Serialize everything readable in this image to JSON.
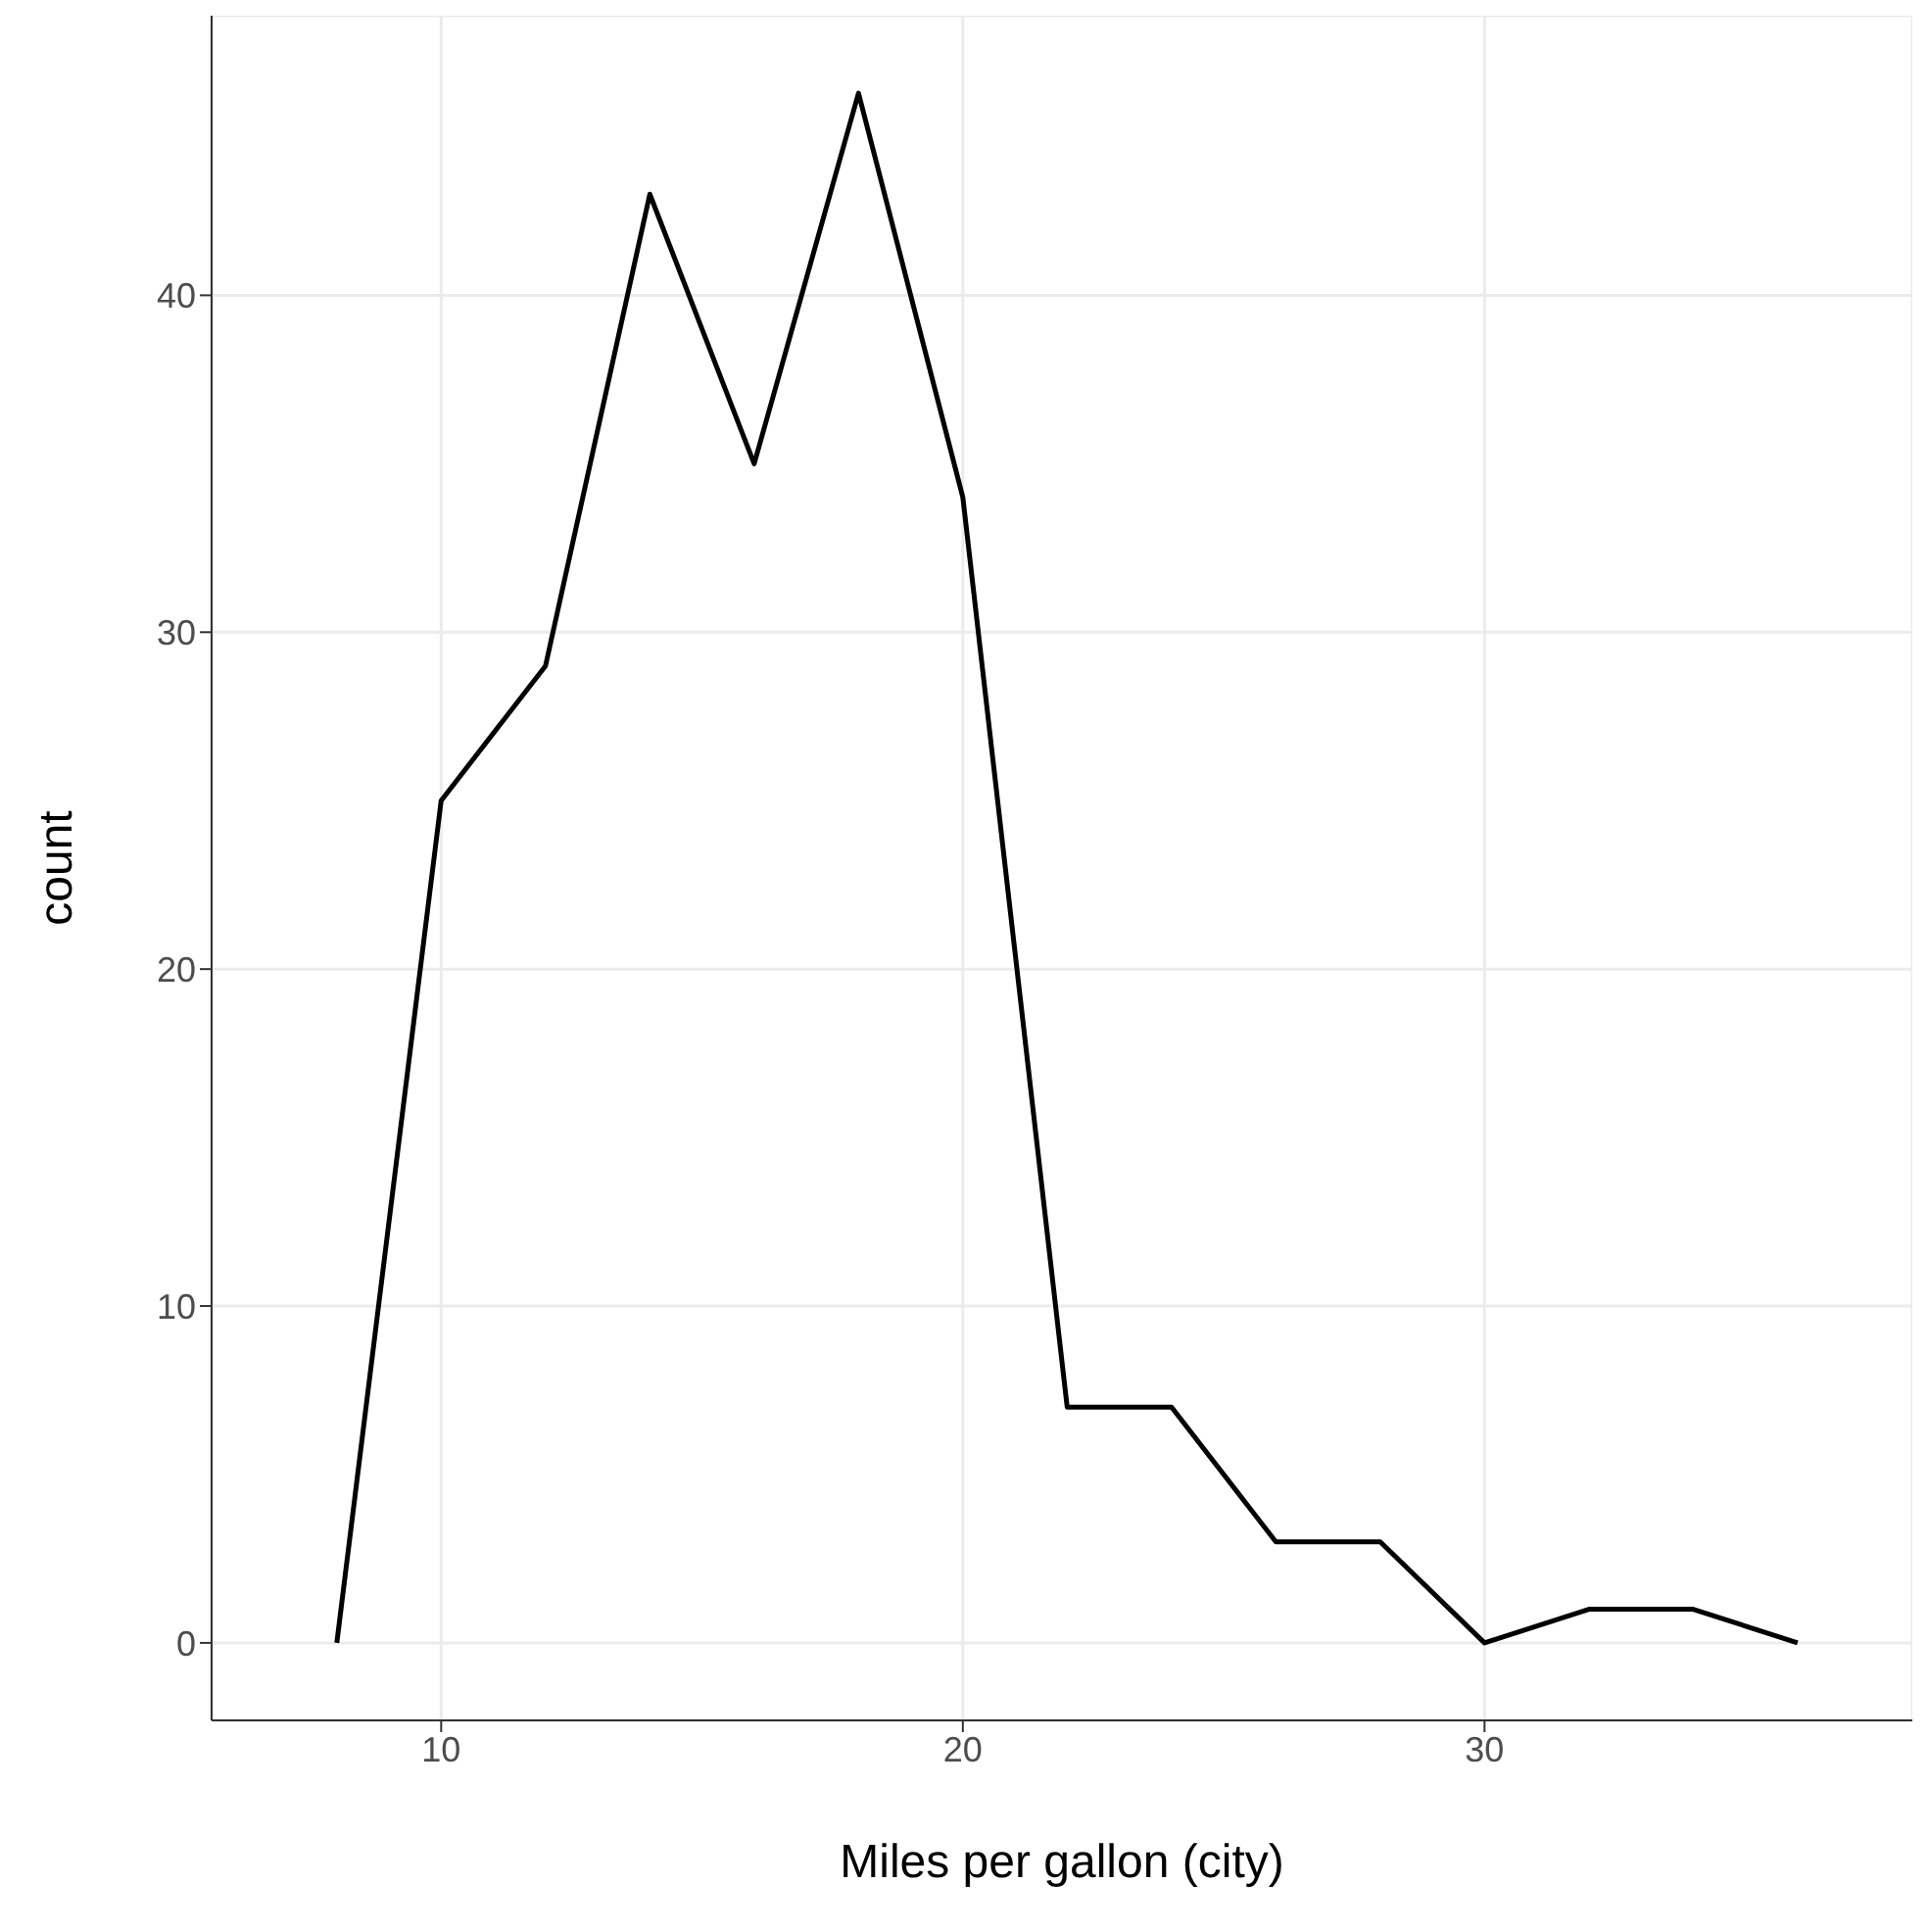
{
  "chart_data": {
    "type": "line",
    "xlabel": "Miles per gallon (city)",
    "ylabel": "count",
    "x": [
      8,
      10,
      12,
      14,
      16,
      18,
      20,
      22,
      24,
      26,
      28,
      30,
      32,
      34,
      36
    ],
    "series": [
      {
        "color": "#000000",
        "values": [
          0,
          25,
          29,
          43,
          35,
          46,
          34,
          7,
          7,
          3,
          3,
          0,
          1,
          1,
          0
        ]
      }
    ],
    "xlim": [
      5.6,
      38.2
    ],
    "xticks": [
      10,
      20,
      30
    ],
    "ylim": [
      -2.3,
      48.3
    ],
    "yticks": [
      0,
      10,
      20,
      30,
      40
    ],
    "grid": true,
    "legend": false,
    "marker": "none",
    "line_style": "solid"
  }
}
